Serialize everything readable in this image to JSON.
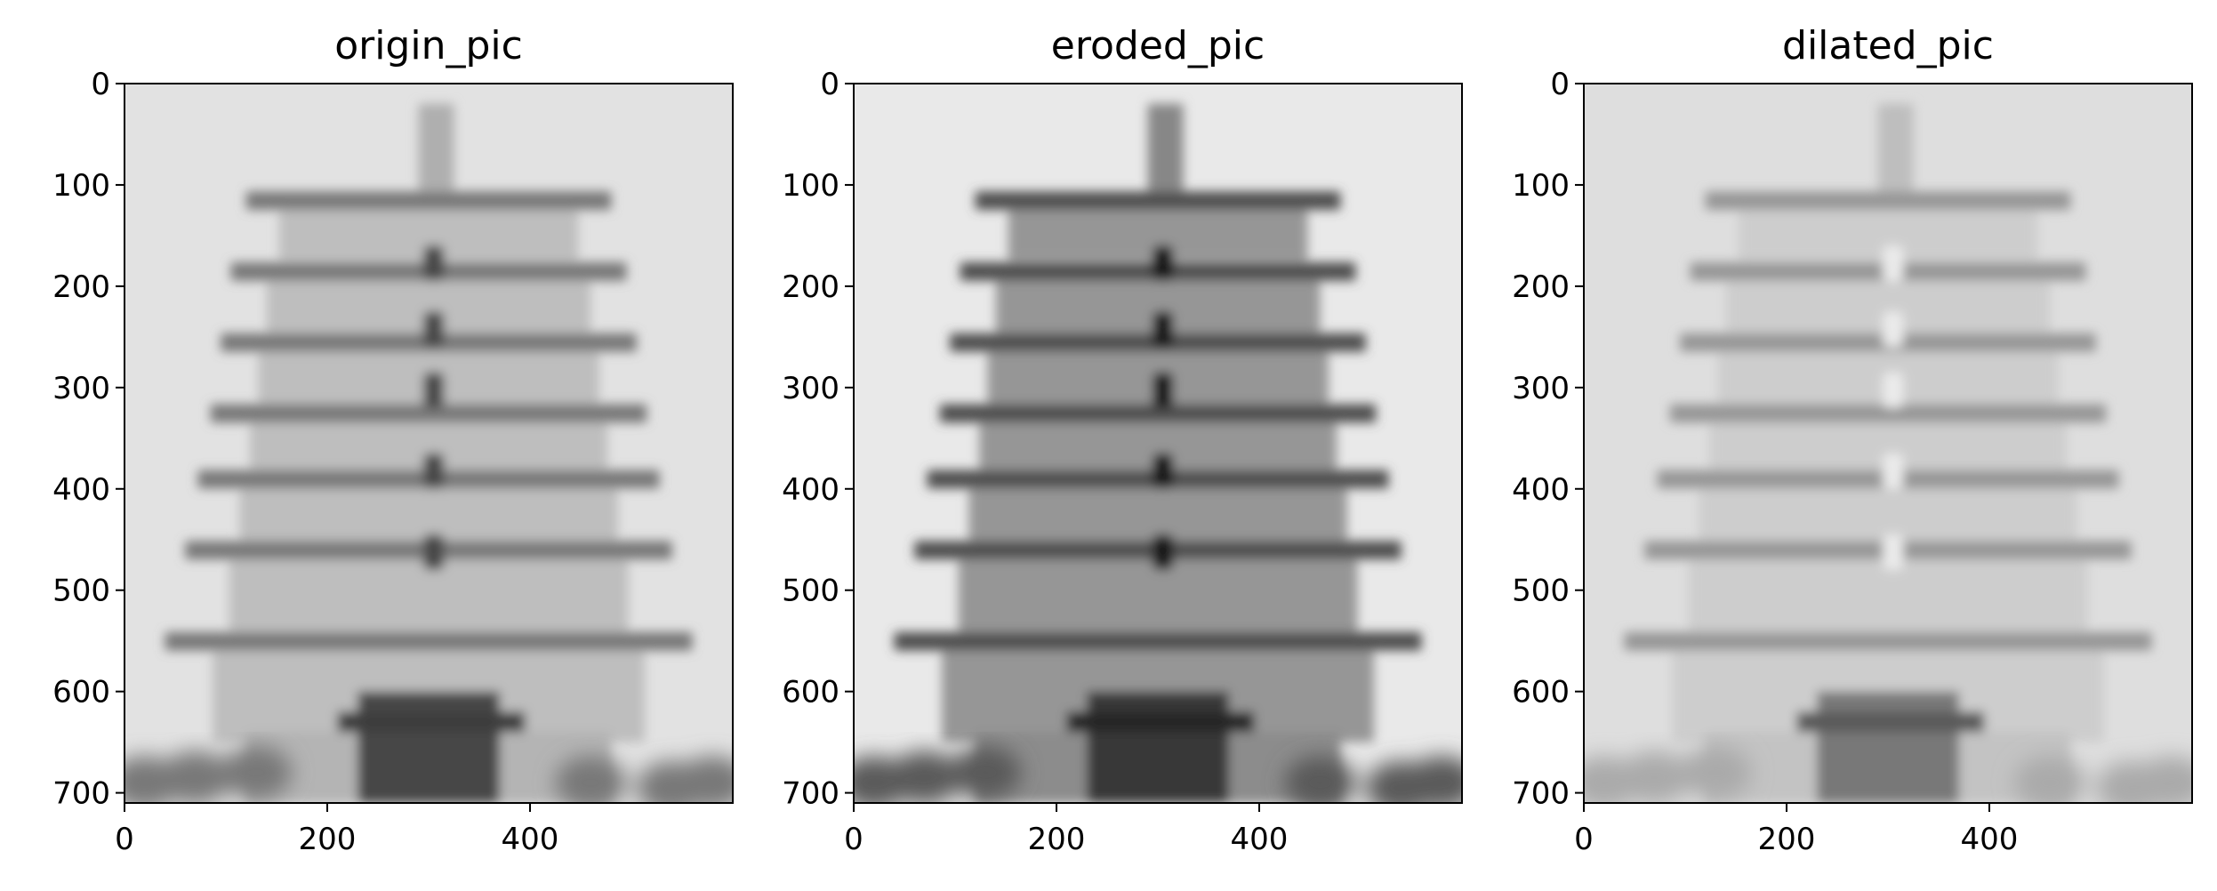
{
  "figure": {
    "panels": [
      {
        "key": "origin",
        "title": "origin_pic",
        "xlim": [
          0,
          600
        ],
        "ylim": [
          710,
          0
        ],
        "xticks": [
          0,
          200,
          400
        ],
        "yticks": [
          0,
          100,
          200,
          300,
          400,
          500,
          600,
          700
        ],
        "tone": "normal"
      },
      {
        "key": "eroded",
        "title": "eroded_pic",
        "xlim": [
          0,
          600
        ],
        "ylim": [
          710,
          0
        ],
        "xticks": [
          0,
          200,
          400
        ],
        "yticks": [
          0,
          100,
          200,
          300,
          400,
          500,
          600,
          700
        ],
        "tone": "dark"
      },
      {
        "key": "dilated",
        "title": "dilated_pic",
        "xlim": [
          0,
          600
        ],
        "ylim": [
          710,
          0
        ],
        "xticks": [
          0,
          200,
          400
        ],
        "yticks": [
          0,
          100,
          200,
          300,
          400,
          500,
          600,
          700
        ],
        "tone": "light"
      }
    ],
    "colors": {
      "background_origin": "#e2e2e2",
      "background_eroded": "#e9e9e9",
      "background_dilated": "#dedede",
      "axis": "#000000"
    }
  }
}
